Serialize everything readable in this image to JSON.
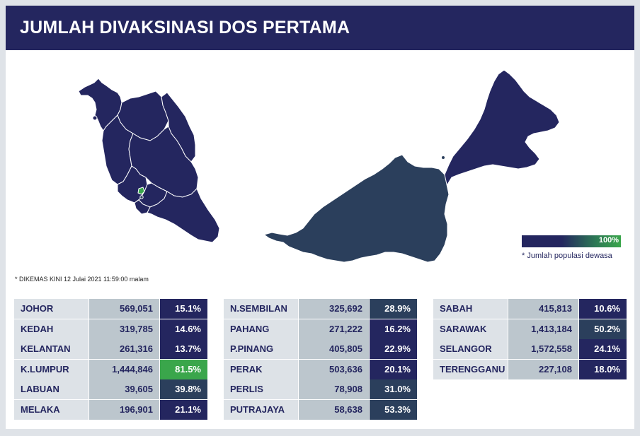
{
  "title": "JUMLAH DIVAKSINASI DOS PERTAMA",
  "timestamp": "* DIKEMAS KINI 12 Julai 2021 11:59:00 malam",
  "legend": {
    "max_label": "100%",
    "note": "* Jumlah populasi dewasa"
  },
  "colors": {
    "header": "#24265f",
    "pct_low": "#24265f",
    "pct_mid": "#2b3f5c",
    "pct_high": "#3aa64b",
    "peninsula": "#24265f",
    "borneo_sarawak": "#2b3f5c",
    "borneo_sabah": "#24265f",
    "kl": "#3aa64b"
  },
  "tables": [
    [
      {
        "state": "JOHOR",
        "count": "569,051",
        "pct": "15.1%",
        "pct_value": 15.1
      },
      {
        "state": "KEDAH",
        "count": "319,785",
        "pct": "14.6%",
        "pct_value": 14.6
      },
      {
        "state": "KELANTAN",
        "count": "261,316",
        "pct": "13.7%",
        "pct_value": 13.7
      },
      {
        "state": "K.LUMPUR",
        "count": "1,444,846",
        "pct": "81.5%",
        "pct_value": 81.5
      },
      {
        "state": "LABUAN",
        "count": "39,605",
        "pct": "39.8%",
        "pct_value": 39.8
      },
      {
        "state": "MELAKA",
        "count": "196,901",
        "pct": "21.1%",
        "pct_value": 21.1
      }
    ],
    [
      {
        "state": "N.SEMBILAN",
        "count": "325,692",
        "pct": "28.9%",
        "pct_value": 28.9
      },
      {
        "state": "PAHANG",
        "count": "271,222",
        "pct": "16.2%",
        "pct_value": 16.2
      },
      {
        "state": "P.PINANG",
        "count": "405,805",
        "pct": "22.9%",
        "pct_value": 22.9
      },
      {
        "state": "PERAK",
        "count": "503,636",
        "pct": "20.1%",
        "pct_value": 20.1
      },
      {
        "state": "PERLIS",
        "count": "78,908",
        "pct": "31.0%",
        "pct_value": 31.0
      },
      {
        "state": "PUTRAJAYA",
        "count": "58,638",
        "pct": "53.3%",
        "pct_value": 53.3
      }
    ],
    [
      {
        "state": "SABAH",
        "count": "415,813",
        "pct": "10.6%",
        "pct_value": 10.6
      },
      {
        "state": "SARAWAK",
        "count": "1,413,184",
        "pct": "50.2%",
        "pct_value": 50.2
      },
      {
        "state": "SELANGOR",
        "count": "1,572,558",
        "pct": "24.1%",
        "pct_value": 24.1
      },
      {
        "state": "TERENGGANU",
        "count": "227,108",
        "pct": "18.0%",
        "pct_value": 18.0
      }
    ]
  ]
}
